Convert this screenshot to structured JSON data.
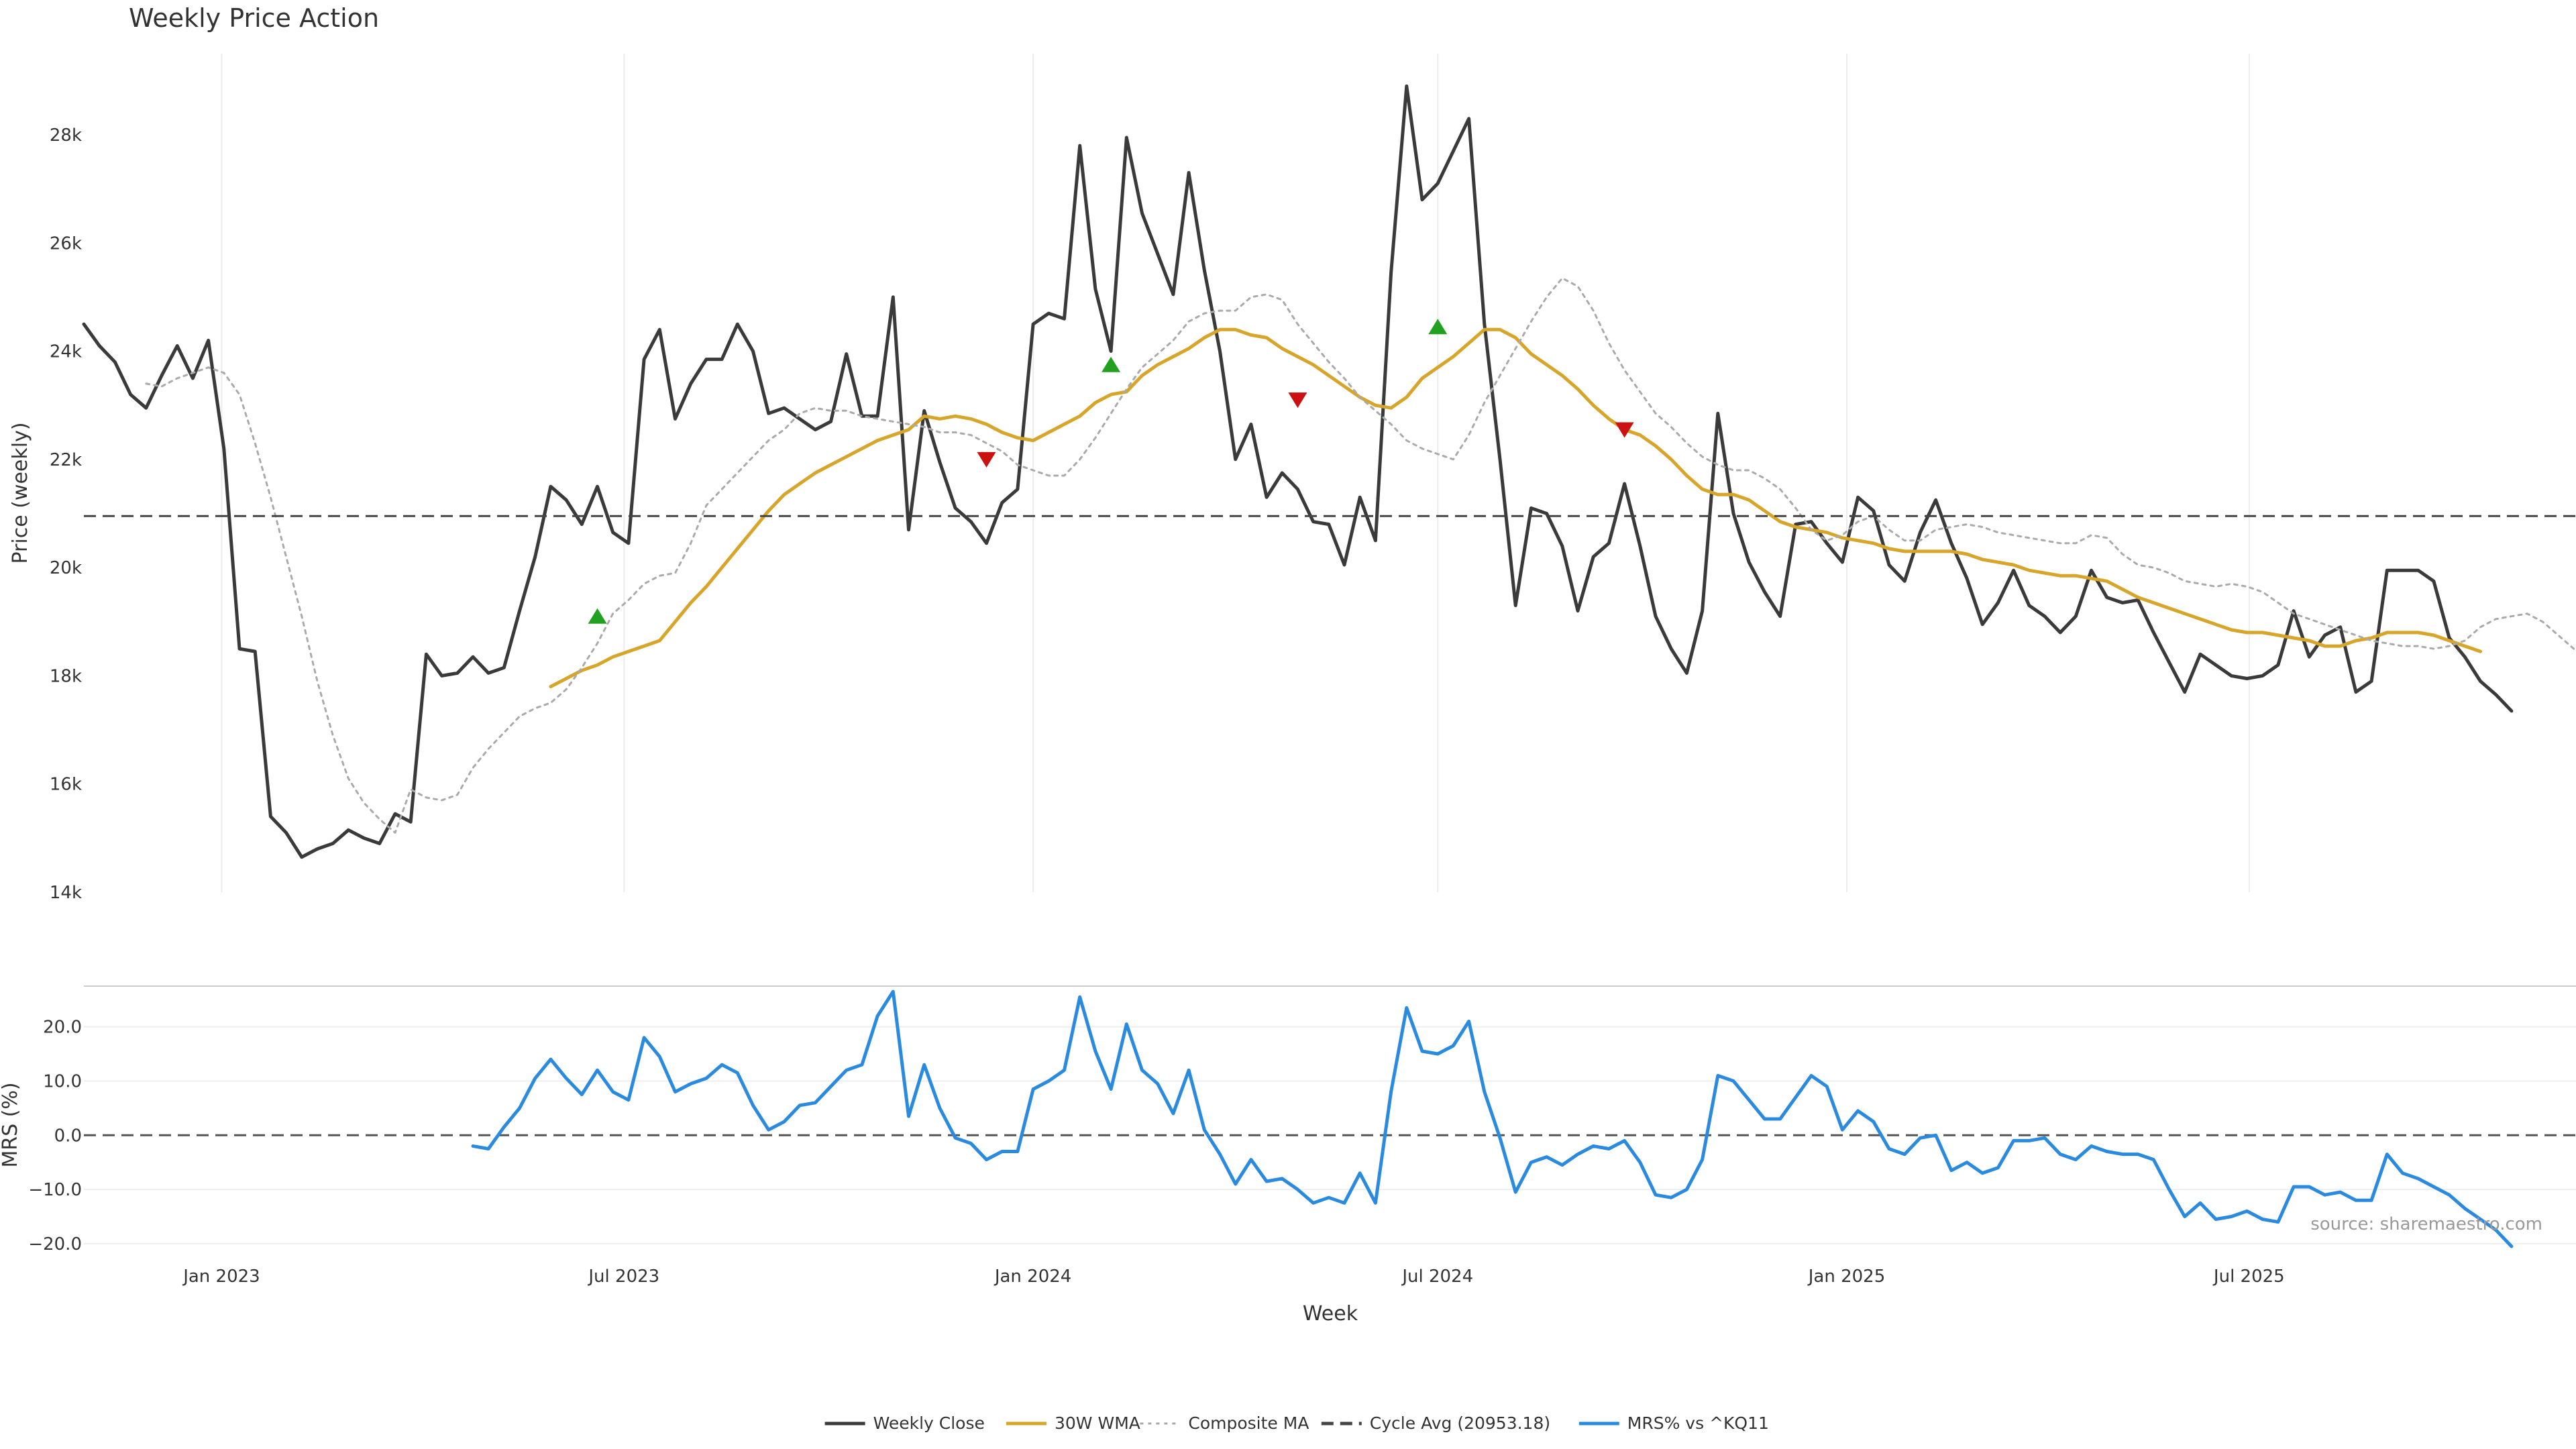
{
  "chart_data": {
    "type": "line",
    "title": "Weekly Price Action",
    "xlabel": "Week",
    "source": "source: sharemaestro.com",
    "panels": [
      {
        "name": "price",
        "ylabel": "Price (weekly)",
        "ylim": [
          14000,
          29500
        ],
        "yticks": [
          14000,
          16000,
          18000,
          20000,
          22000,
          24000,
          26000,
          28000
        ],
        "ytick_labels": [
          "14k",
          "16k",
          "18k",
          "20k",
          "22k",
          "24k",
          "26k",
          "28k"
        ],
        "series": [
          {
            "name": "Weekly Close",
            "color": "#3a3a3a",
            "style": "solid",
            "x_start": "2022-10-31",
            "x_step_days": 7,
            "values": [
              24500,
              24100,
              23800,
              23200,
              22950,
              23550,
              24100,
              23500,
              24200,
              22200,
              18500,
              18450,
              15400,
              15100,
              14650,
              14800,
              14900,
              15150,
              15000,
              14900,
              15450,
              15300,
              18400,
              18000,
              18050,
              18350,
              18050,
              18150,
              19200,
              20200,
              21500,
              21250,
              20800,
              21500,
              20650,
              20450,
              23850,
              24400,
              22750,
              23400,
              23850,
              23850,
              24500,
              24000,
              22850,
              22950,
              22750,
              22550,
              22700,
              23950,
              22800,
              22800,
              25000,
              20700,
              22900,
              21950,
              21100,
              20850,
              20450,
              21200,
              21450,
              24500,
              24700,
              24600,
              27800,
              25150,
              24000,
              27950,
              26550,
              25800,
              25050,
              27300,
              25500,
              24000,
              22000,
              22650,
              21300,
              21750,
              21450,
              20850,
              20800,
              20050,
              21300,
              20500,
              25450,
              28900,
              26800,
              27100,
              27700,
              28300,
              24500,
              22000,
              19300,
              21100,
              21000,
              20400,
              19200,
              20200,
              20450,
              21550,
              20400,
              19100,
              18500,
              18050,
              19200,
              22850,
              21000,
              20100,
              19550,
              19100,
              20800,
              20850,
              20450,
              20100,
              21300,
              21050,
              20050,
              19750,
              20650,
              21250,
              20450,
              19800,
              18950,
              19350,
              19950,
              19300,
              19100,
              18800,
              19100,
              19950,
              19450,
              19350,
              19400,
              18800,
              18250,
              17700,
              18400,
              18200,
              18000,
              17950,
              18000,
              18200,
              19200,
              18350,
              18750,
              18900,
              17700,
              17900,
              19950,
              19950,
              19950,
              19750,
              18700,
              18350,
              17900,
              17650,
              17350
            ]
          },
          {
            "name": "30W WMA",
            "color": "#d6a52a",
            "style": "solid",
            "x_start": "2023-05-29",
            "x_step_days": 7,
            "values": [
              17800,
              17950,
              18100,
              18200,
              18350,
              18450,
              18550,
              18650,
              19000,
              19350,
              19650,
              20000,
              20350,
              20700,
              21050,
              21350,
              21550,
              21750,
              21900,
              22050,
              22200,
              22350,
              22450,
              22550,
              22800,
              22750,
              22800,
              22750,
              22650,
              22500,
              22400,
              22350,
              22500,
              22650,
              22800,
              23050,
              23200,
              23250,
              23550,
              23750,
              23900,
              24050,
              24250,
              24400,
              24400,
              24300,
              24250,
              24050,
              23900,
              23750,
              23550,
              23350,
              23150,
              23000,
              22950,
              23150,
              23500,
              23700,
              23900,
              24150,
              24400,
              24400,
              24250,
              23950,
              23750,
              23550,
              23300,
              23000,
              22750,
              22550,
              22450,
              22250,
              22000,
              21700,
              21450,
              21350,
              21350,
              21250,
              21050,
              20850,
              20750,
              20700,
              20650,
              20550,
              20500,
              20450,
              20350,
              20300,
              20300,
              20300,
              20300,
              20250,
              20150,
              20100,
              20050,
              19950,
              19900,
              19850,
              19850,
              19800,
              19750,
              19600,
              19450,
              19350,
              19250,
              19150,
              19050,
              18950,
              18850,
              18800,
              18800,
              18750,
              18700,
              18650,
              18550,
              18550,
              18650,
              18700,
              18800,
              18800,
              18800,
              18750,
              18650,
              18550,
              18450
            ]
          },
          {
            "name": "Composite MA",
            "color": "#aaaaaa",
            "style": "dotted",
            "x_start": "2022-11-28",
            "x_step_days": 7,
            "values": [
              23400,
              23350,
              23500,
              23600,
              23700,
              23600,
              23200,
              22300,
              21300,
              20200,
              19100,
              17900,
              16900,
              16100,
              15650,
              15350,
              15100,
              15900,
              15750,
              15700,
              15800,
              16300,
              16650,
              16950,
              17250,
              17400,
              17500,
              17750,
              18150,
              18600,
              19150,
              19400,
              19700,
              19850,
              19900,
              20450,
              21150,
              21450,
              21750,
              22050,
              22350,
              22550,
              22850,
              22950,
              22900,
              22900,
              22800,
              22750,
              22700,
              22650,
              22600,
              22500,
              22500,
              22450,
              22300,
              22150,
              21900,
              21800,
              21700,
              21700,
              22000,
              22400,
              22850,
              23300,
              23700,
              23950,
              24200,
              24550,
              24700,
              24750,
              24750,
              25000,
              25050,
              24950,
              24500,
              24150,
              23800,
              23500,
              23150,
              22900,
              22650,
              22350,
              22200,
              22100,
              22000,
              22450,
              23050,
              23550,
              24050,
              24550,
              25000,
              25350,
              25200,
              24750,
              24150,
              23650,
              23250,
              22850,
              22600,
              22300,
              22050,
              21900,
              21800,
              21800,
              21650,
              21450,
              21100,
              20700,
              20500,
              20600,
              20850,
              20950,
              20700,
              20500,
              20500,
              20700,
              20750,
              20800,
              20750,
              20650,
              20600,
              20550,
              20500,
              20450,
              20450,
              20600,
              20550,
              20250,
              20050,
              20000,
              19900,
              19750,
              19700,
              19650,
              19700,
              19650,
              19550,
              19350,
              19150,
              19050,
              18950,
              18850,
              18750,
              18650,
              18600,
              18550,
              18550,
              18500,
              18550,
              18650,
              18900,
              19050,
              19100,
              19150,
              19000,
              18750,
              18500
            ]
          },
          {
            "name": "Cycle Avg (20953.18)",
            "color": "#444444",
            "style": "dashed",
            "value": 20953.18
          }
        ],
        "signals": {
          "buy": [
            {
              "x": "2023-06-19",
              "y": 19100
            },
            {
              "x": "2024-02-05",
              "y": 23750
            },
            {
              "x": "2024-07-01",
              "y": 24450
            }
          ],
          "sell": [
            {
              "x": "2023-12-11",
              "y": 22000
            },
            {
              "x": "2024-04-29",
              "y": 23100
            },
            {
              "x": "2024-09-23",
              "y": 22550
            }
          ],
          "buy_color": "#22a020",
          "sell_color": "#cc1111"
        }
      },
      {
        "name": "mrs",
        "ylabel": "MRS (%)",
        "ylim": [
          -21,
          27.5
        ],
        "yticks": [
          -20,
          -10,
          0,
          10,
          20
        ],
        "ytick_labels": [
          "−20.0",
          "−10.0",
          "0.0",
          "10.0",
          "20.0"
        ],
        "series": [
          {
            "name": "MRS% vs ^KQ11",
            "color": "#2a8ae0",
            "style": "solid",
            "x_start": "2023-04-24",
            "x_step_days": 7,
            "values": [
              -2,
              -2.5,
              1.5,
              5,
              10.5,
              14,
              10.5,
              7.5,
              12,
              8,
              6.5,
              18,
              14.5,
              8,
              9.5,
              10.5,
              13,
              11.5,
              5.5,
              1,
              2.5,
              5.5,
              6,
              9,
              12,
              13,
              22,
              26.5,
              3.5,
              13,
              5,
              -0.5,
              -1.5,
              -4.5,
              -3,
              -3,
              8.5,
              10,
              12,
              25.5,
              15.5,
              8.5,
              20.5,
              12,
              9.5,
              4,
              12,
              1,
              -3.5,
              -9,
              -4.5,
              -8.5,
              -8,
              -10,
              -12.5,
              -11.5,
              -12.5,
              -7,
              -12.5,
              8,
              23.5,
              15.5,
              15,
              16.5,
              21,
              8,
              -0.5,
              -10.5,
              -5,
              -4,
              -5.5,
              -3.5,
              -2,
              -2.5,
              -1,
              -5,
              -11,
              -11.5,
              -10,
              -4.5,
              11,
              10,
              6.5,
              3,
              3,
              7,
              11,
              9,
              1,
              4.5,
              2.5,
              -2.5,
              -3.5,
              -0.5,
              0,
              -6.5,
              -5,
              -7,
              -6,
              -1,
              -1,
              -0.5,
              -3.5,
              -4.5,
              -2,
              -3,
              -3.5,
              -3.5,
              -4.5,
              -10,
              -15,
              -12.5,
              -15.5,
              -15,
              -14,
              -15.5,
              -16,
              -9.5,
              -9.5,
              -11,
              -10.5,
              -12,
              -12,
              -3.5,
              -7,
              -8,
              -9.5,
              -11,
              -13.5,
              -15.5,
              -17.5,
              -20.5
            ]
          }
        ]
      }
    ],
    "x_ticks": [
      {
        "date": "2023-01-01",
        "label": "Jan 2023"
      },
      {
        "date": "2023-07-01",
        "label": "Jul 2023"
      },
      {
        "date": "2024-01-01",
        "label": "Jan 2024"
      },
      {
        "date": "2024-07-01",
        "label": "Jul 2024"
      },
      {
        "date": "2025-01-01",
        "label": "Jan 2025"
      },
      {
        "date": "2025-07-01",
        "label": "Jul 2025"
      }
    ],
    "xlim": [
      "2022-10-31",
      "2025-11-25"
    ],
    "legend": {
      "placement": "bottom-center",
      "entries": [
        {
          "label": "Weekly Close",
          "color": "#3a3a3a",
          "style": "solid"
        },
        {
          "label": "30W WMA",
          "color": "#d6a52a",
          "style": "solid"
        },
        {
          "label": "Composite MA",
          "color": "#aaaaaa",
          "style": "dotted"
        },
        {
          "label": "Cycle Avg (20953.18)",
          "color": "#444444",
          "style": "dashed"
        },
        {
          "label": "MRS% vs ^KQ11",
          "color": "#2a8ae0",
          "style": "solid"
        }
      ]
    },
    "grid": true
  }
}
